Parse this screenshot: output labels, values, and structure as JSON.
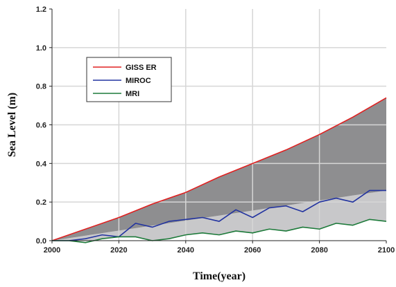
{
  "chart_data": {
    "type": "line",
    "title": "",
    "xlabel": "Time(year)",
    "ylabel": "Sea Level (m)",
    "xlim": [
      2000,
      2100
    ],
    "ylim": [
      0.0,
      1.2
    ],
    "x_ticks": [
      "2000",
      "2020",
      "2040",
      "2060",
      "2080",
      "2100"
    ],
    "y_ticks": [
      "0.0",
      "0.2",
      "0.4",
      "0.6",
      "0.8",
      "1.0",
      "1.2"
    ],
    "grid": true,
    "legend_position": "upper-left",
    "shaded_regions": [
      {
        "description": "range between MIROC trend and GISS ER",
        "color": "#8e8e90"
      },
      {
        "description": "range between MRI and MIROC trend",
        "color": "#c8c8ca"
      }
    ],
    "series": [
      {
        "name": "GISS ER",
        "color": "#e02020",
        "x": [
          2000,
          2010,
          2020,
          2030,
          2040,
          2050,
          2060,
          2070,
          2080,
          2090,
          2100
        ],
        "y": [
          0.0,
          0.06,
          0.12,
          0.19,
          0.25,
          0.33,
          0.4,
          0.47,
          0.55,
          0.64,
          0.74
        ]
      },
      {
        "name": "MIROC",
        "color": "#2233a0",
        "x": [
          2000,
          2005,
          2010,
          2015,
          2020,
          2025,
          2030,
          2035,
          2040,
          2045,
          2050,
          2055,
          2060,
          2065,
          2070,
          2075,
          2080,
          2085,
          2090,
          2095,
          2100
        ],
        "y": [
          0.0,
          0.0,
          0.01,
          0.03,
          0.02,
          0.09,
          0.07,
          0.1,
          0.11,
          0.12,
          0.1,
          0.16,
          0.12,
          0.17,
          0.18,
          0.15,
          0.2,
          0.22,
          0.2,
          0.26,
          0.26
        ]
      },
      {
        "name": "MRI",
        "color": "#1d7a3a",
        "x": [
          2000,
          2005,
          2010,
          2015,
          2020,
          2025,
          2030,
          2035,
          2040,
          2045,
          2050,
          2055,
          2060,
          2065,
          2070,
          2075,
          2080,
          2085,
          2090,
          2095,
          2100
        ],
        "y": [
          0.0,
          0.0,
          -0.01,
          0.01,
          0.02,
          0.02,
          0.0,
          0.01,
          0.03,
          0.04,
          0.03,
          0.05,
          0.04,
          0.06,
          0.05,
          0.07,
          0.06,
          0.09,
          0.08,
          0.11,
          0.1
        ]
      }
    ]
  }
}
